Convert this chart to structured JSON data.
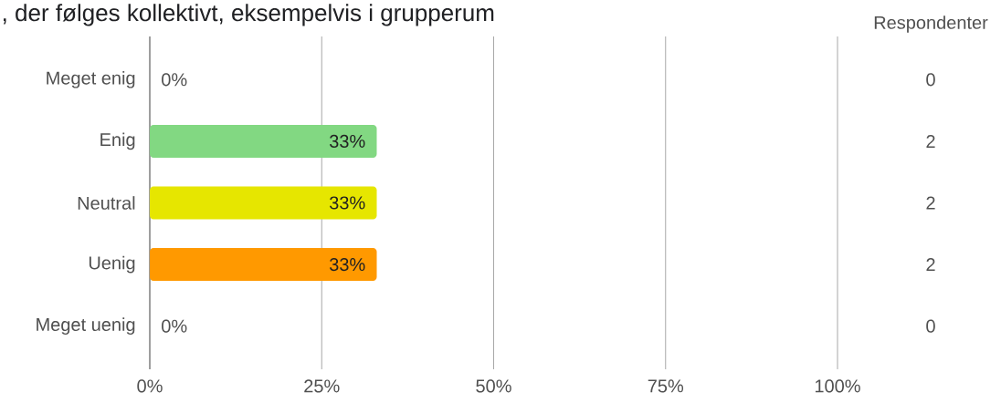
{
  "chart_data": {
    "type": "bar",
    "orientation": "horizontal",
    "title": ", der følges kollektivt, eksempelvis i grupperum",
    "categories": [
      "Meget enig",
      "Enig",
      "Neutral",
      "Uenig",
      "Meget uenig"
    ],
    "values": [
      0,
      33,
      33,
      33,
      0
    ],
    "colors": [
      null,
      "#82d882",
      "#e6e600",
      "#ff9900",
      null
    ],
    "value_labels": [
      "0%",
      "33%",
      "33%",
      "33%",
      "0%"
    ],
    "xlim": [
      0,
      100
    ],
    "xticks": [
      {
        "value": 0,
        "label": "0%"
      },
      {
        "value": 25,
        "label": "25%"
      },
      {
        "value": 50,
        "label": "50%"
      },
      {
        "value": 75,
        "label": "75%"
      },
      {
        "value": 100,
        "label": "100%"
      }
    ],
    "grid": "x",
    "annotations": [
      "Respondenter",
      "0",
      "2",
      "2",
      "2",
      "0"
    ]
  }
}
